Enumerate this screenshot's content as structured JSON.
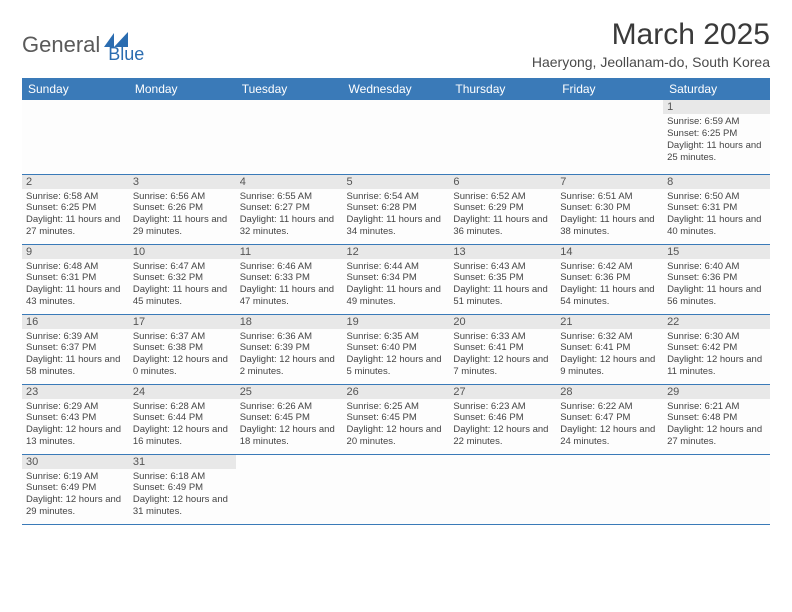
{
  "logo": {
    "general": "General",
    "blue": "Blue"
  },
  "title": "March 2025",
  "subtitle": "Haeryong, Jeollanam-do, South Korea",
  "weekdays": [
    "Sunday",
    "Monday",
    "Tuesday",
    "Wednesday",
    "Thursday",
    "Friday",
    "Saturday"
  ],
  "colors": {
    "header_bg": "#3a7ab8",
    "header_fg": "#ffffff",
    "row_border": "#3a7ab8",
    "daynum_bg": "#e8e8e8"
  },
  "first_weekday": 6,
  "days_in_month": 31,
  "days": {
    "1": {
      "sunrise": "6:59 AM",
      "sunset": "6:25 PM",
      "daylight": "11 hours and 25 minutes."
    },
    "2": {
      "sunrise": "6:58 AM",
      "sunset": "6:25 PM",
      "daylight": "11 hours and 27 minutes."
    },
    "3": {
      "sunrise": "6:56 AM",
      "sunset": "6:26 PM",
      "daylight": "11 hours and 29 minutes."
    },
    "4": {
      "sunrise": "6:55 AM",
      "sunset": "6:27 PM",
      "daylight": "11 hours and 32 minutes."
    },
    "5": {
      "sunrise": "6:54 AM",
      "sunset": "6:28 PM",
      "daylight": "11 hours and 34 minutes."
    },
    "6": {
      "sunrise": "6:52 AM",
      "sunset": "6:29 PM",
      "daylight": "11 hours and 36 minutes."
    },
    "7": {
      "sunrise": "6:51 AM",
      "sunset": "6:30 PM",
      "daylight": "11 hours and 38 minutes."
    },
    "8": {
      "sunrise": "6:50 AM",
      "sunset": "6:31 PM",
      "daylight": "11 hours and 40 minutes."
    },
    "9": {
      "sunrise": "6:48 AM",
      "sunset": "6:31 PM",
      "daylight": "11 hours and 43 minutes."
    },
    "10": {
      "sunrise": "6:47 AM",
      "sunset": "6:32 PM",
      "daylight": "11 hours and 45 minutes."
    },
    "11": {
      "sunrise": "6:46 AM",
      "sunset": "6:33 PM",
      "daylight": "11 hours and 47 minutes."
    },
    "12": {
      "sunrise": "6:44 AM",
      "sunset": "6:34 PM",
      "daylight": "11 hours and 49 minutes."
    },
    "13": {
      "sunrise": "6:43 AM",
      "sunset": "6:35 PM",
      "daylight": "11 hours and 51 minutes."
    },
    "14": {
      "sunrise": "6:42 AM",
      "sunset": "6:36 PM",
      "daylight": "11 hours and 54 minutes."
    },
    "15": {
      "sunrise": "6:40 AM",
      "sunset": "6:36 PM",
      "daylight": "11 hours and 56 minutes."
    },
    "16": {
      "sunrise": "6:39 AM",
      "sunset": "6:37 PM",
      "daylight": "11 hours and 58 minutes."
    },
    "17": {
      "sunrise": "6:37 AM",
      "sunset": "6:38 PM",
      "daylight": "12 hours and 0 minutes."
    },
    "18": {
      "sunrise": "6:36 AM",
      "sunset": "6:39 PM",
      "daylight": "12 hours and 2 minutes."
    },
    "19": {
      "sunrise": "6:35 AM",
      "sunset": "6:40 PM",
      "daylight": "12 hours and 5 minutes."
    },
    "20": {
      "sunrise": "6:33 AM",
      "sunset": "6:41 PM",
      "daylight": "12 hours and 7 minutes."
    },
    "21": {
      "sunrise": "6:32 AM",
      "sunset": "6:41 PM",
      "daylight": "12 hours and 9 minutes."
    },
    "22": {
      "sunrise": "6:30 AM",
      "sunset": "6:42 PM",
      "daylight": "12 hours and 11 minutes."
    },
    "23": {
      "sunrise": "6:29 AM",
      "sunset": "6:43 PM",
      "daylight": "12 hours and 13 minutes."
    },
    "24": {
      "sunrise": "6:28 AM",
      "sunset": "6:44 PM",
      "daylight": "12 hours and 16 minutes."
    },
    "25": {
      "sunrise": "6:26 AM",
      "sunset": "6:45 PM",
      "daylight": "12 hours and 18 minutes."
    },
    "26": {
      "sunrise": "6:25 AM",
      "sunset": "6:45 PM",
      "daylight": "12 hours and 20 minutes."
    },
    "27": {
      "sunrise": "6:23 AM",
      "sunset": "6:46 PM",
      "daylight": "12 hours and 22 minutes."
    },
    "28": {
      "sunrise": "6:22 AM",
      "sunset": "6:47 PM",
      "daylight": "12 hours and 24 minutes."
    },
    "29": {
      "sunrise": "6:21 AM",
      "sunset": "6:48 PM",
      "daylight": "12 hours and 27 minutes."
    },
    "30": {
      "sunrise": "6:19 AM",
      "sunset": "6:49 PM",
      "daylight": "12 hours and 29 minutes."
    },
    "31": {
      "sunrise": "6:18 AM",
      "sunset": "6:49 PM",
      "daylight": "12 hours and 31 minutes."
    }
  },
  "labels": {
    "sunrise": "Sunrise:",
    "sunset": "Sunset:",
    "daylight": "Daylight:"
  }
}
